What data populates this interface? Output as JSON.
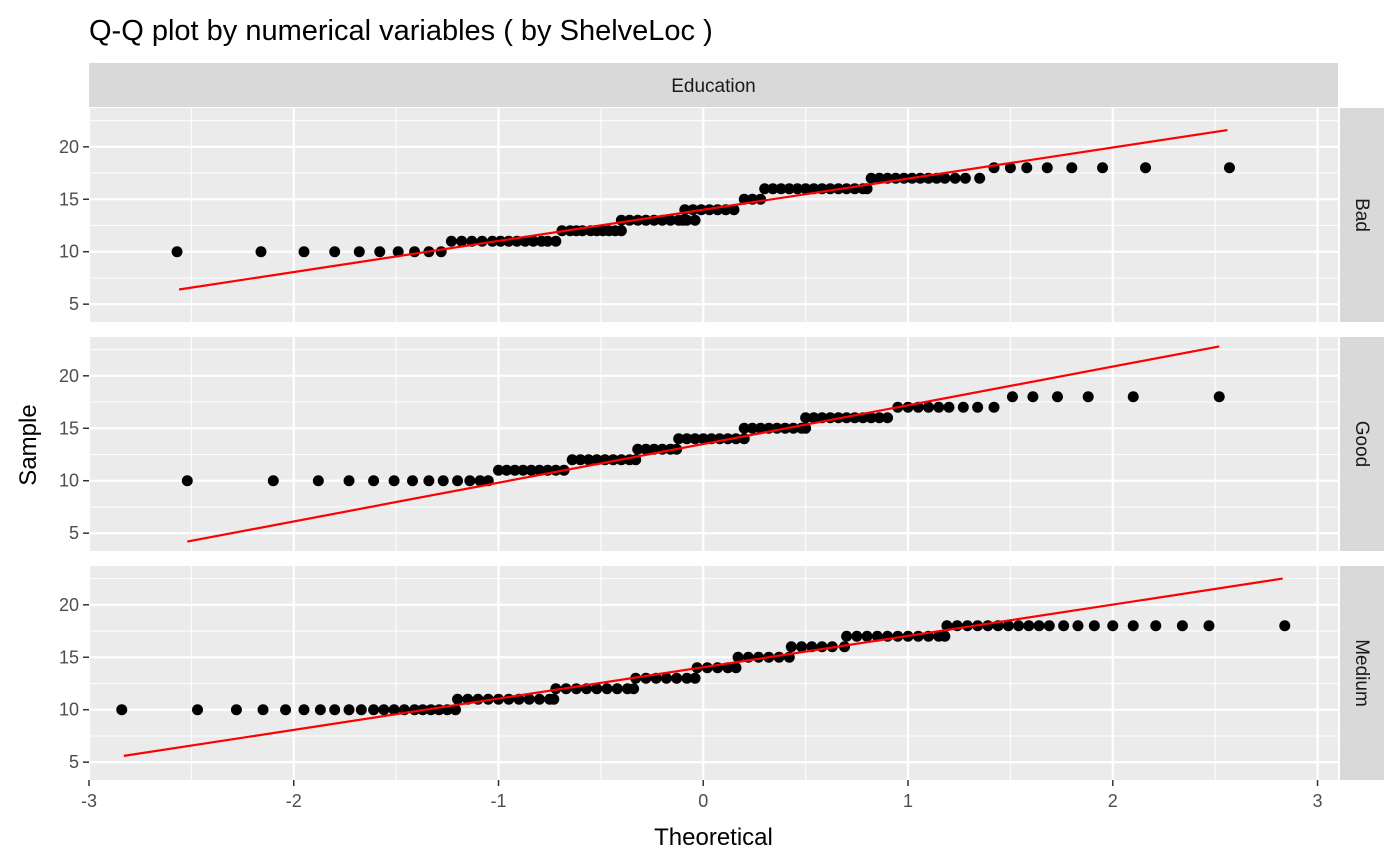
{
  "chart_data": {
    "type": "scatter",
    "title": "Q-Q plot by numerical variables ( by ShelveLoc )",
    "xlabel": "Theoretical",
    "ylabel": "Sample",
    "facet_column": "Education",
    "xlim": [
      -3.0,
      3.1
    ],
    "ylim": [
      3.3,
      23.7
    ],
    "x_ticks": [
      -3,
      -2,
      -1,
      0,
      1,
      2,
      3
    ],
    "x_tick_labels": [
      "-3",
      "-2",
      "-1",
      "0",
      "1",
      "2",
      "3"
    ],
    "y_ticks": [
      5,
      10,
      15,
      20
    ],
    "y_tick_labels": [
      "5",
      "10",
      "15",
      "20"
    ],
    "grid": true,
    "point_color": "#000000",
    "line_color": "#ff0000",
    "panels": [
      {
        "name": "Bad",
        "points": [
          [
            -2.57,
            10
          ],
          [
            -2.16,
            10
          ],
          [
            -1.95,
            10
          ],
          [
            -1.8,
            10
          ],
          [
            -1.68,
            10
          ],
          [
            -1.58,
            10
          ],
          [
            -1.49,
            10
          ],
          [
            -1.41,
            10
          ],
          [
            -1.34,
            10
          ],
          [
            -1.28,
            10
          ],
          [
            -1.23,
            11
          ],
          [
            -1.18,
            11
          ],
          [
            -1.13,
            11
          ],
          [
            -1.08,
            11
          ],
          [
            -1.03,
            11
          ],
          [
            -0.99,
            11
          ],
          [
            -0.95,
            11
          ],
          [
            -0.91,
            11
          ],
          [
            -0.87,
            11
          ],
          [
            -0.83,
            11
          ],
          [
            -0.79,
            11
          ],
          [
            -0.76,
            11
          ],
          [
            -0.72,
            11
          ],
          [
            -0.69,
            12
          ],
          [
            -0.65,
            12
          ],
          [
            -0.62,
            12
          ],
          [
            -0.59,
            12
          ],
          [
            -0.55,
            12
          ],
          [
            -0.52,
            12
          ],
          [
            -0.49,
            12
          ],
          [
            -0.46,
            12
          ],
          [
            -0.43,
            12
          ],
          [
            -0.4,
            12
          ],
          [
            -0.4,
            13
          ],
          [
            -0.36,
            13
          ],
          [
            -0.32,
            13
          ],
          [
            -0.28,
            13
          ],
          [
            -0.24,
            13
          ],
          [
            -0.2,
            13
          ],
          [
            -0.16,
            13
          ],
          [
            -0.12,
            13
          ],
          [
            -0.08,
            13
          ],
          [
            -0.04,
            13
          ],
          [
            -0.1,
            13
          ],
          [
            -0.09,
            14
          ],
          [
            -0.05,
            14
          ],
          [
            -0.01,
            14
          ],
          [
            0.03,
            14
          ],
          [
            0.07,
            14
          ],
          [
            0.11,
            14
          ],
          [
            0.15,
            14
          ],
          [
            0.2,
            15
          ],
          [
            0.24,
            15
          ],
          [
            0.28,
            15
          ],
          [
            0.3,
            16
          ],
          [
            0.34,
            16
          ],
          [
            0.38,
            16
          ],
          [
            0.42,
            16
          ],
          [
            0.46,
            16
          ],
          [
            0.5,
            16
          ],
          [
            0.54,
            16
          ],
          [
            0.58,
            16
          ],
          [
            0.62,
            16
          ],
          [
            0.66,
            16
          ],
          [
            0.7,
            16
          ],
          [
            0.74,
            16
          ],
          [
            0.78,
            16
          ],
          [
            0.8,
            16
          ],
          [
            0.82,
            17
          ],
          [
            0.86,
            17
          ],
          [
            0.9,
            17
          ],
          [
            0.94,
            17
          ],
          [
            0.98,
            17
          ],
          [
            1.02,
            17
          ],
          [
            1.06,
            17
          ],
          [
            1.1,
            17
          ],
          [
            1.14,
            17
          ],
          [
            1.18,
            17
          ],
          [
            1.23,
            17
          ],
          [
            1.28,
            17
          ],
          [
            1.35,
            17
          ],
          [
            1.42,
            18
          ],
          [
            1.5,
            18
          ],
          [
            1.58,
            18
          ],
          [
            1.68,
            18
          ],
          [
            1.8,
            18
          ],
          [
            1.95,
            18
          ],
          [
            2.16,
            18
          ],
          [
            2.57,
            18
          ]
        ],
        "line": [
          [
            -2.56,
            6.4
          ],
          [
            2.56,
            21.6
          ]
        ]
      },
      {
        "name": "Good",
        "points": [
          [
            -2.52,
            10
          ],
          [
            -2.1,
            10
          ],
          [
            -1.88,
            10
          ],
          [
            -1.73,
            10
          ],
          [
            -1.61,
            10
          ],
          [
            -1.51,
            10
          ],
          [
            -1.42,
            10
          ],
          [
            -1.34,
            10
          ],
          [
            -1.27,
            10
          ],
          [
            -1.2,
            10
          ],
          [
            -1.14,
            10
          ],
          [
            -1.09,
            10
          ],
          [
            -1.05,
            10
          ],
          [
            -1.0,
            11
          ],
          [
            -0.96,
            11
          ],
          [
            -0.92,
            11
          ],
          [
            -0.88,
            11
          ],
          [
            -0.84,
            11
          ],
          [
            -0.8,
            11
          ],
          [
            -0.76,
            11
          ],
          [
            -0.72,
            11
          ],
          [
            -0.68,
            11
          ],
          [
            -0.64,
            12
          ],
          [
            -0.6,
            12
          ],
          [
            -0.56,
            12
          ],
          [
            -0.52,
            12
          ],
          [
            -0.48,
            12
          ],
          [
            -0.44,
            12
          ],
          [
            -0.4,
            12
          ],
          [
            -0.36,
            12
          ],
          [
            -0.33,
            12
          ],
          [
            -0.32,
            13
          ],
          [
            -0.28,
            13
          ],
          [
            -0.24,
            13
          ],
          [
            -0.2,
            13
          ],
          [
            -0.16,
            13
          ],
          [
            -0.13,
            13
          ],
          [
            -0.12,
            14
          ],
          [
            -0.08,
            14
          ],
          [
            -0.04,
            14
          ],
          [
            0.0,
            14
          ],
          [
            0.04,
            14
          ],
          [
            0.08,
            14
          ],
          [
            0.12,
            14
          ],
          [
            0.16,
            14
          ],
          [
            0.2,
            14
          ],
          [
            0.2,
            15
          ],
          [
            0.24,
            15
          ],
          [
            0.28,
            15
          ],
          [
            0.32,
            15
          ],
          [
            0.36,
            15
          ],
          [
            0.4,
            15
          ],
          [
            0.44,
            15
          ],
          [
            0.48,
            15
          ],
          [
            0.5,
            15
          ],
          [
            0.5,
            16
          ],
          [
            0.54,
            16
          ],
          [
            0.58,
            16
          ],
          [
            0.62,
            16
          ],
          [
            0.66,
            16
          ],
          [
            0.7,
            16
          ],
          [
            0.74,
            16
          ],
          [
            0.78,
            16
          ],
          [
            0.82,
            16
          ],
          [
            0.86,
            16
          ],
          [
            0.9,
            16
          ],
          [
            0.95,
            17
          ],
          [
            1.0,
            17
          ],
          [
            1.05,
            17
          ],
          [
            1.1,
            17
          ],
          [
            1.15,
            17
          ],
          [
            1.2,
            17
          ],
          [
            1.27,
            17
          ],
          [
            1.34,
            17
          ],
          [
            1.42,
            17
          ],
          [
            1.51,
            18
          ],
          [
            1.61,
            18
          ],
          [
            1.73,
            18
          ],
          [
            1.88,
            18
          ],
          [
            2.1,
            18
          ],
          [
            2.52,
            18
          ]
        ],
        "line": [
          [
            -2.52,
            4.2
          ],
          [
            2.52,
            22.8
          ]
        ]
      },
      {
        "name": "Medium",
        "points": [
          [
            -2.84,
            10
          ],
          [
            -2.47,
            10
          ],
          [
            -2.28,
            10
          ],
          [
            -2.15,
            10
          ],
          [
            -2.04,
            10
          ],
          [
            -1.95,
            10
          ],
          [
            -1.87,
            10
          ],
          [
            -1.8,
            10
          ],
          [
            -1.73,
            10
          ],
          [
            -1.67,
            10
          ],
          [
            -1.61,
            10
          ],
          [
            -1.56,
            10
          ],
          [
            -1.51,
            10
          ],
          [
            -1.46,
            10
          ],
          [
            -1.41,
            10
          ],
          [
            -1.37,
            10
          ],
          [
            -1.33,
            10
          ],
          [
            -1.29,
            10
          ],
          [
            -1.25,
            10
          ],
          [
            -1.21,
            10
          ],
          [
            -1.2,
            11
          ],
          [
            -1.15,
            11
          ],
          [
            -1.1,
            11
          ],
          [
            -1.05,
            11
          ],
          [
            -1.0,
            11
          ],
          [
            -0.95,
            11
          ],
          [
            -0.9,
            11
          ],
          [
            -0.85,
            11
          ],
          [
            -0.8,
            11
          ],
          [
            -0.75,
            11
          ],
          [
            -0.73,
            11
          ],
          [
            -0.72,
            12
          ],
          [
            -0.67,
            12
          ],
          [
            -0.62,
            12
          ],
          [
            -0.57,
            12
          ],
          [
            -0.52,
            12
          ],
          [
            -0.47,
            12
          ],
          [
            -0.42,
            12
          ],
          [
            -0.37,
            12
          ],
          [
            -0.34,
            12
          ],
          [
            -0.33,
            13
          ],
          [
            -0.28,
            13
          ],
          [
            -0.23,
            13
          ],
          [
            -0.18,
            13
          ],
          [
            -0.13,
            13
          ],
          [
            -0.08,
            13
          ],
          [
            -0.04,
            13
          ],
          [
            -0.03,
            14
          ],
          [
            0.02,
            14
          ],
          [
            0.07,
            14
          ],
          [
            0.12,
            14
          ],
          [
            0.16,
            14
          ],
          [
            0.17,
            15
          ],
          [
            0.22,
            15
          ],
          [
            0.27,
            15
          ],
          [
            0.32,
            15
          ],
          [
            0.37,
            15
          ],
          [
            0.42,
            15
          ],
          [
            0.43,
            16
          ],
          [
            0.48,
            16
          ],
          [
            0.53,
            16
          ],
          [
            0.58,
            16
          ],
          [
            0.63,
            16
          ],
          [
            0.69,
            16
          ],
          [
            0.7,
            17
          ],
          [
            0.75,
            17
          ],
          [
            0.8,
            17
          ],
          [
            0.85,
            17
          ],
          [
            0.9,
            17
          ],
          [
            0.95,
            17
          ],
          [
            1.0,
            17
          ],
          [
            1.05,
            17
          ],
          [
            1.1,
            17
          ],
          [
            1.15,
            17
          ],
          [
            1.18,
            17
          ],
          [
            1.19,
            18
          ],
          [
            1.24,
            18
          ],
          [
            1.29,
            18
          ],
          [
            1.34,
            18
          ],
          [
            1.39,
            18
          ],
          [
            1.44,
            18
          ],
          [
            1.49,
            18
          ],
          [
            1.54,
            18
          ],
          [
            1.59,
            18
          ],
          [
            1.64,
            18
          ],
          [
            1.69,
            18
          ],
          [
            1.76,
            18
          ],
          [
            1.83,
            18
          ],
          [
            1.91,
            18
          ],
          [
            2.0,
            18
          ],
          [
            2.1,
            18
          ],
          [
            2.21,
            18
          ],
          [
            2.34,
            18
          ],
          [
            2.47,
            18
          ],
          [
            2.84,
            18
          ]
        ],
        "line": [
          [
            -2.83,
            5.6
          ],
          [
            2.83,
            22.5
          ]
        ]
      }
    ]
  }
}
